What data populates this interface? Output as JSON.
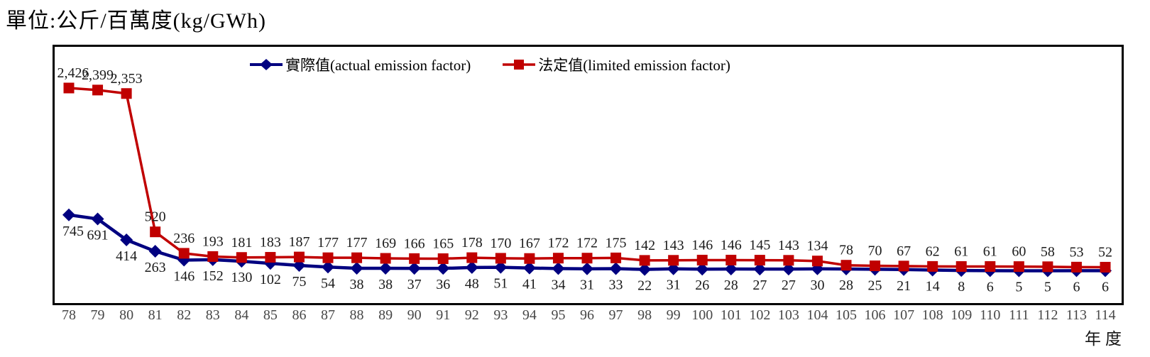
{
  "unit_title": "單位:公斤/百萬度(kg/GWh)",
  "x_axis_title": "年度",
  "legend": {
    "actual": "實際值(actual emission factor)",
    "limited": "法定值(limited emission factor)"
  },
  "colors": {
    "actual": "#000080",
    "limited": "#c00000",
    "label_text": "#1b1b1b",
    "tick_text": "#474747",
    "frame_border": "#000000"
  },
  "chart_data": {
    "type": "line",
    "title": "單位:公斤/百萬度(kg/GWh)",
    "xlabel": "年度",
    "ylabel": "",
    "ylim": [
      0,
      2600
    ],
    "grid": false,
    "legend_position": "top-center",
    "data_labels": true,
    "x": [
      78,
      79,
      80,
      81,
      82,
      83,
      84,
      85,
      86,
      87,
      88,
      89,
      90,
      91,
      92,
      93,
      94,
      95,
      96,
      97,
      98,
      99,
      100,
      101,
      102,
      103,
      104,
      105,
      106,
      107,
      108,
      109,
      110,
      111,
      112,
      113,
      114
    ],
    "series": [
      {
        "name": "實際值(actual emission factor)",
        "marker": "diamond",
        "color": "#000080",
        "label_position": "below",
        "values": [
          745,
          691,
          414,
          263,
          146,
          152,
          130,
          102,
          75,
          54,
          38,
          38,
          37,
          36,
          48,
          51,
          41,
          34,
          31,
          33,
          22,
          31,
          26,
          28,
          27,
          27,
          30,
          28,
          25,
          21,
          14,
          8,
          6,
          5,
          5,
          6,
          6
        ]
      },
      {
        "name": "法定值(limited emission factor)",
        "marker": "square",
        "color": "#c00000",
        "label_position": "above",
        "values": [
          2426,
          2399,
          2353,
          520,
          236,
          193,
          181,
          183,
          187,
          177,
          177,
          169,
          166,
          165,
          178,
          170,
          167,
          172,
          172,
          175,
          142,
          143,
          146,
          146,
          145,
          143,
          134,
          78,
          70,
          67,
          62,
          61,
          61,
          60,
          58,
          53,
          52
        ]
      }
    ]
  }
}
